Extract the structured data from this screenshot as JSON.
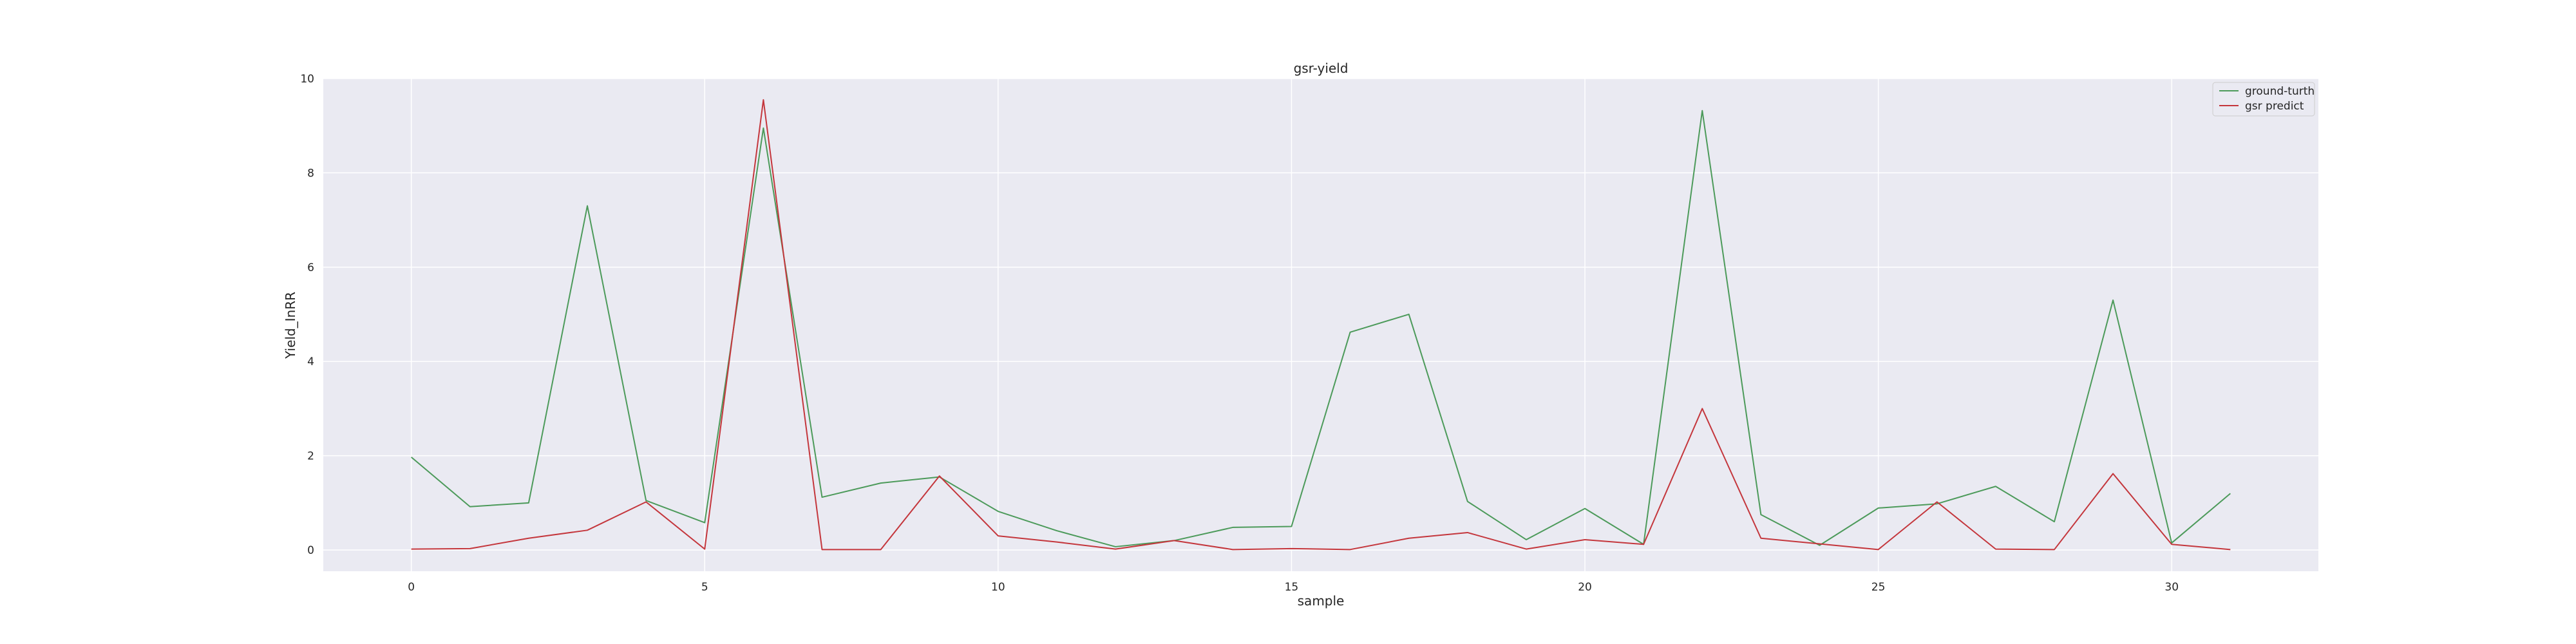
{
  "chart_data": {
    "type": "line",
    "title": "gsr-yield",
    "xlabel": "sample",
    "ylabel": "Yield_InRR",
    "xlim": [
      -1.5,
      32.5
    ],
    "ylim": [
      -0.45,
      10
    ],
    "xticks": [
      0,
      5,
      10,
      15,
      20,
      25,
      30
    ],
    "yticks": [
      0,
      2,
      4,
      6,
      8,
      10
    ],
    "grid": true,
    "legend_position": "top-right",
    "x": [
      0,
      1,
      2,
      3,
      4,
      5,
      6,
      7,
      8,
      9,
      10,
      11,
      12,
      13,
      14,
      15,
      16,
      17,
      18,
      19,
      20,
      21,
      22,
      23,
      24,
      25,
      26,
      27,
      28,
      29,
      30,
      31
    ],
    "series": [
      {
        "name": "ground-turth",
        "color": "#4c9a5a",
        "values": [
          1.97,
          0.92,
          1.0,
          7.3,
          1.05,
          0.58,
          8.95,
          1.12,
          1.42,
          1.55,
          0.82,
          0.41,
          0.07,
          0.2,
          0.48,
          0.5,
          4.62,
          5.0,
          1.03,
          0.22,
          0.88,
          0.12,
          9.32,
          0.75,
          0.1,
          0.89,
          0.98,
          1.35,
          0.6,
          5.3,
          0.15,
          1.2
        ]
      },
      {
        "name": "gsr predict",
        "color": "#c4363c",
        "values": [
          0.02,
          0.03,
          0.25,
          0.42,
          1.02,
          0.02,
          9.55,
          0.01,
          0.01,
          1.57,
          0.3,
          0.17,
          0.02,
          0.2,
          0.01,
          0.03,
          0.01,
          0.25,
          0.37,
          0.02,
          0.22,
          0.12,
          3.0,
          0.25,
          0.13,
          0.01,
          1.02,
          0.02,
          0.01,
          1.62,
          0.12,
          0.01
        ]
      }
    ]
  }
}
